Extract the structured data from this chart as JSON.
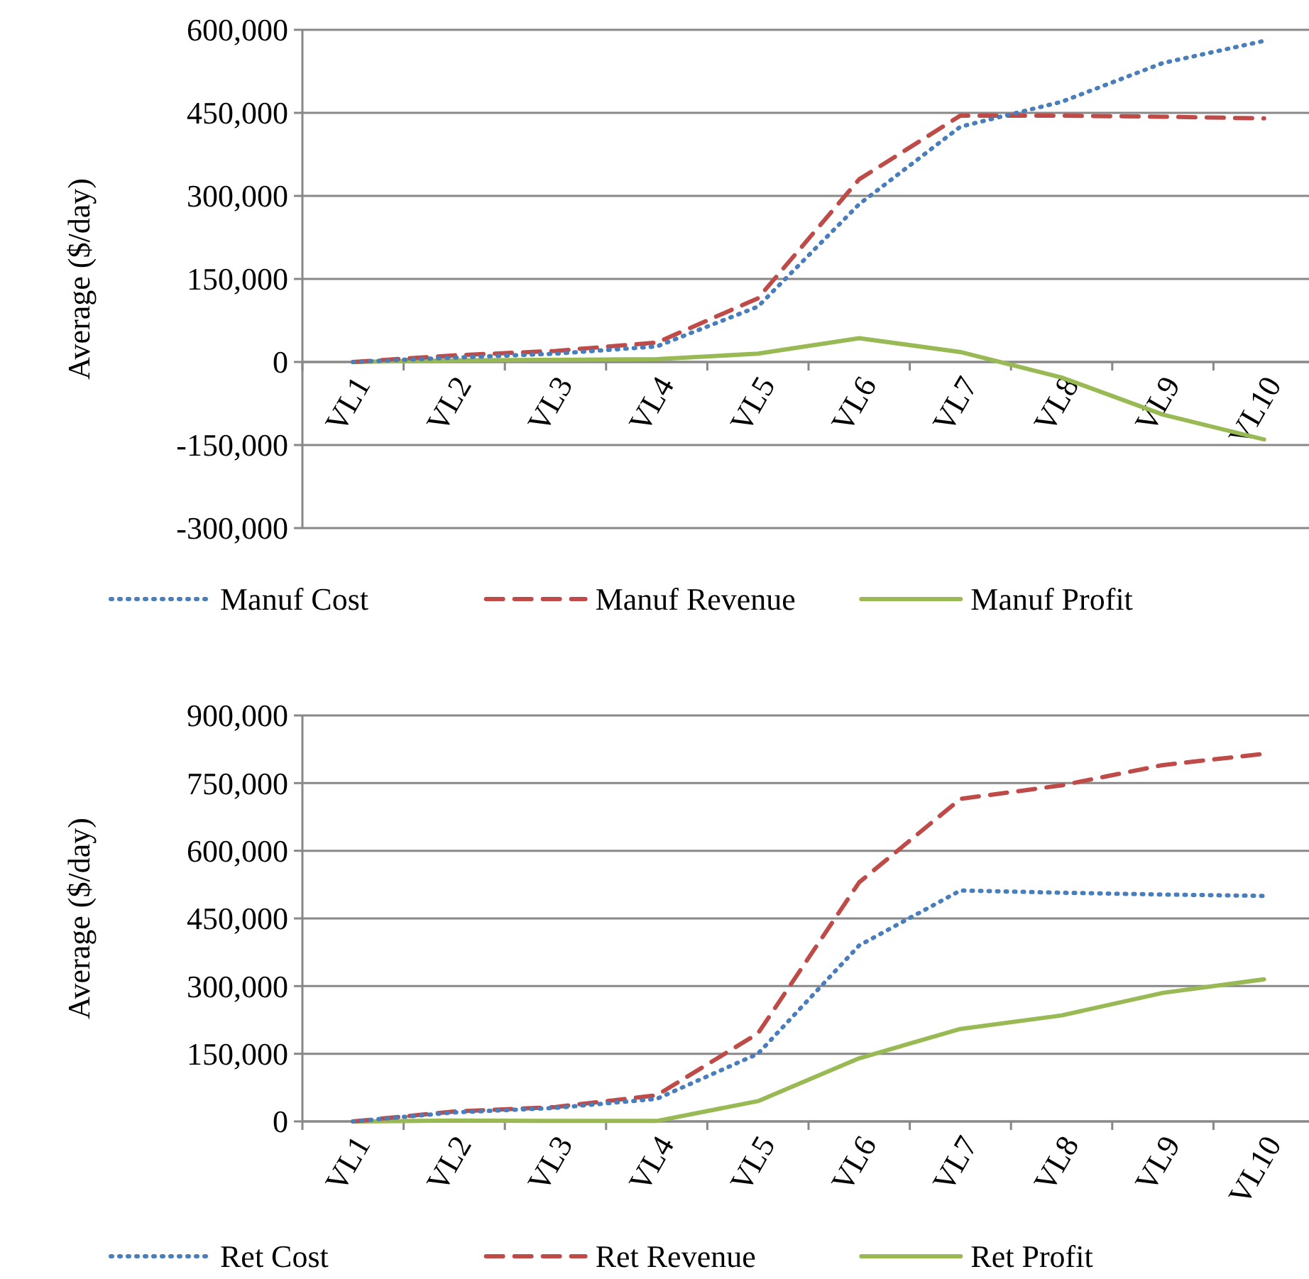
{
  "chart_data": [
    {
      "type": "line",
      "ylabel": "Average ($/day)",
      "categories": [
        "VL1",
        "VL2",
        "VL3",
        "VL4",
        "VL5",
        "VL6",
        "VL7",
        "VL8",
        "VL9",
        "VL10"
      ],
      "ylim": [
        -300000,
        600000
      ],
      "yticks": [
        {
          "value": -300000,
          "label": "-300,000"
        },
        {
          "value": -150000,
          "label": "-150,000"
        },
        {
          "value": 0,
          "label": "0"
        },
        {
          "value": 150000,
          "label": "150,000"
        },
        {
          "value": 300000,
          "label": "300,000"
        },
        {
          "value": 450000,
          "label": "450,000"
        },
        {
          "value": 600000,
          "label": "600,000"
        }
      ],
      "grid": "y",
      "legend": "bottom",
      "series": [
        {
          "name": "Manuf Cost",
          "color": "#4a7ebb",
          "line_style": "dotted",
          "values": [
            0,
            8000,
            15000,
            28000,
            100000,
            285000,
            425000,
            470000,
            540000,
            580000
          ]
        },
        {
          "name": "Manuf Revenue",
          "color": "#be4b48",
          "line_style": "dashed",
          "values": [
            0,
            12000,
            20000,
            35000,
            115000,
            330000,
            445000,
            445000,
            443000,
            440000
          ]
        },
        {
          "name": "Manuf Profit",
          "color": "#98b954",
          "line_style": "solid",
          "values": [
            0,
            3000,
            4000,
            5000,
            15000,
            43000,
            18000,
            -28000,
            -95000,
            -140000
          ]
        }
      ]
    },
    {
      "type": "line",
      "ylabel": "Average ($/day)",
      "categories": [
        "VL1",
        "VL2",
        "VL3",
        "VL4",
        "VL5",
        "VL6",
        "VL7",
        "VL8",
        "VL9",
        "VL10"
      ],
      "ylim": [
        0,
        900000
      ],
      "yticks": [
        {
          "value": 0,
          "label": "0"
        },
        {
          "value": 150000,
          "label": "150,000"
        },
        {
          "value": 300000,
          "label": "300,000"
        },
        {
          "value": 450000,
          "label": "450,000"
        },
        {
          "value": 600000,
          "label": "600,000"
        },
        {
          "value": 750000,
          "label": "750,000"
        },
        {
          "value": 900000,
          "label": "900,000"
        }
      ],
      "grid": "y",
      "legend": "bottom",
      "series": [
        {
          "name": "Ret Cost",
          "color": "#4a7ebb",
          "line_style": "dotted",
          "values": [
            0,
            20000,
            30000,
            50000,
            150000,
            390000,
            512000,
            507000,
            503000,
            500000
          ]
        },
        {
          "name": "Ret Revenue",
          "color": "#be4b48",
          "line_style": "dashed",
          "values": [
            0,
            22000,
            32000,
            58000,
            195000,
            530000,
            715000,
            745000,
            790000,
            815000
          ]
        },
        {
          "name": "Ret Profit",
          "color": "#98b954",
          "line_style": "solid",
          "values": [
            0,
            2000,
            1000,
            1000,
            45000,
            140000,
            205000,
            235000,
            285000,
            315000
          ]
        }
      ]
    }
  ]
}
